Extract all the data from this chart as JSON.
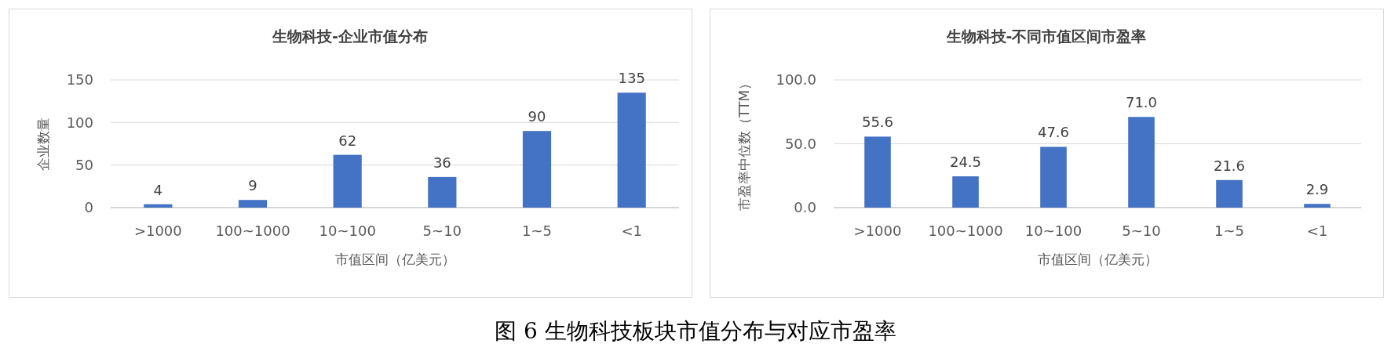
{
  "chart_data": [
    {
      "type": "bar",
      "title": "生物科技-企业市值分布",
      "xlabel": "市值区间（亿美元）",
      "ylabel": "企业数量",
      "categories": [
        ">1000",
        "100~1000",
        "10~100",
        "5~10",
        "1~5",
        "<1"
      ],
      "values": [
        4,
        9,
        62,
        36,
        90,
        135
      ],
      "color": "#4472c4",
      "ylim": [
        0,
        150
      ],
      "yticks": [
        0,
        50,
        100,
        150
      ],
      "grid": "y",
      "data_labels": true,
      "annotations": [
        "图 6  生物科技板块市值分布与对应市盈率"
      ]
    },
    {
      "type": "bar",
      "title": "生物科技-不同市值区间市盈率",
      "xlabel": "市值区间（亿美元）",
      "ylabel": "市盈率中位数（TTM）",
      "categories": [
        ">1000",
        "100~1000",
        "10~100",
        "5~10",
        "1~5",
        "<1"
      ],
      "values": [
        55.6,
        24.5,
        47.6,
        71.0,
        21.6,
        2.9
      ],
      "value_labels": [
        "55.6",
        "24.5",
        "47.6",
        "71.0",
        "21.6",
        "2.9"
      ],
      "color": "#4472c4",
      "ylim": [
        0,
        100
      ],
      "yticks": [
        {
          "value": 0,
          "label": "0.0"
        },
        {
          "value": 50,
          "label": "50.0"
        },
        {
          "value": 100,
          "label": "100.0"
        }
      ],
      "grid": "y"
    }
  ]
}
